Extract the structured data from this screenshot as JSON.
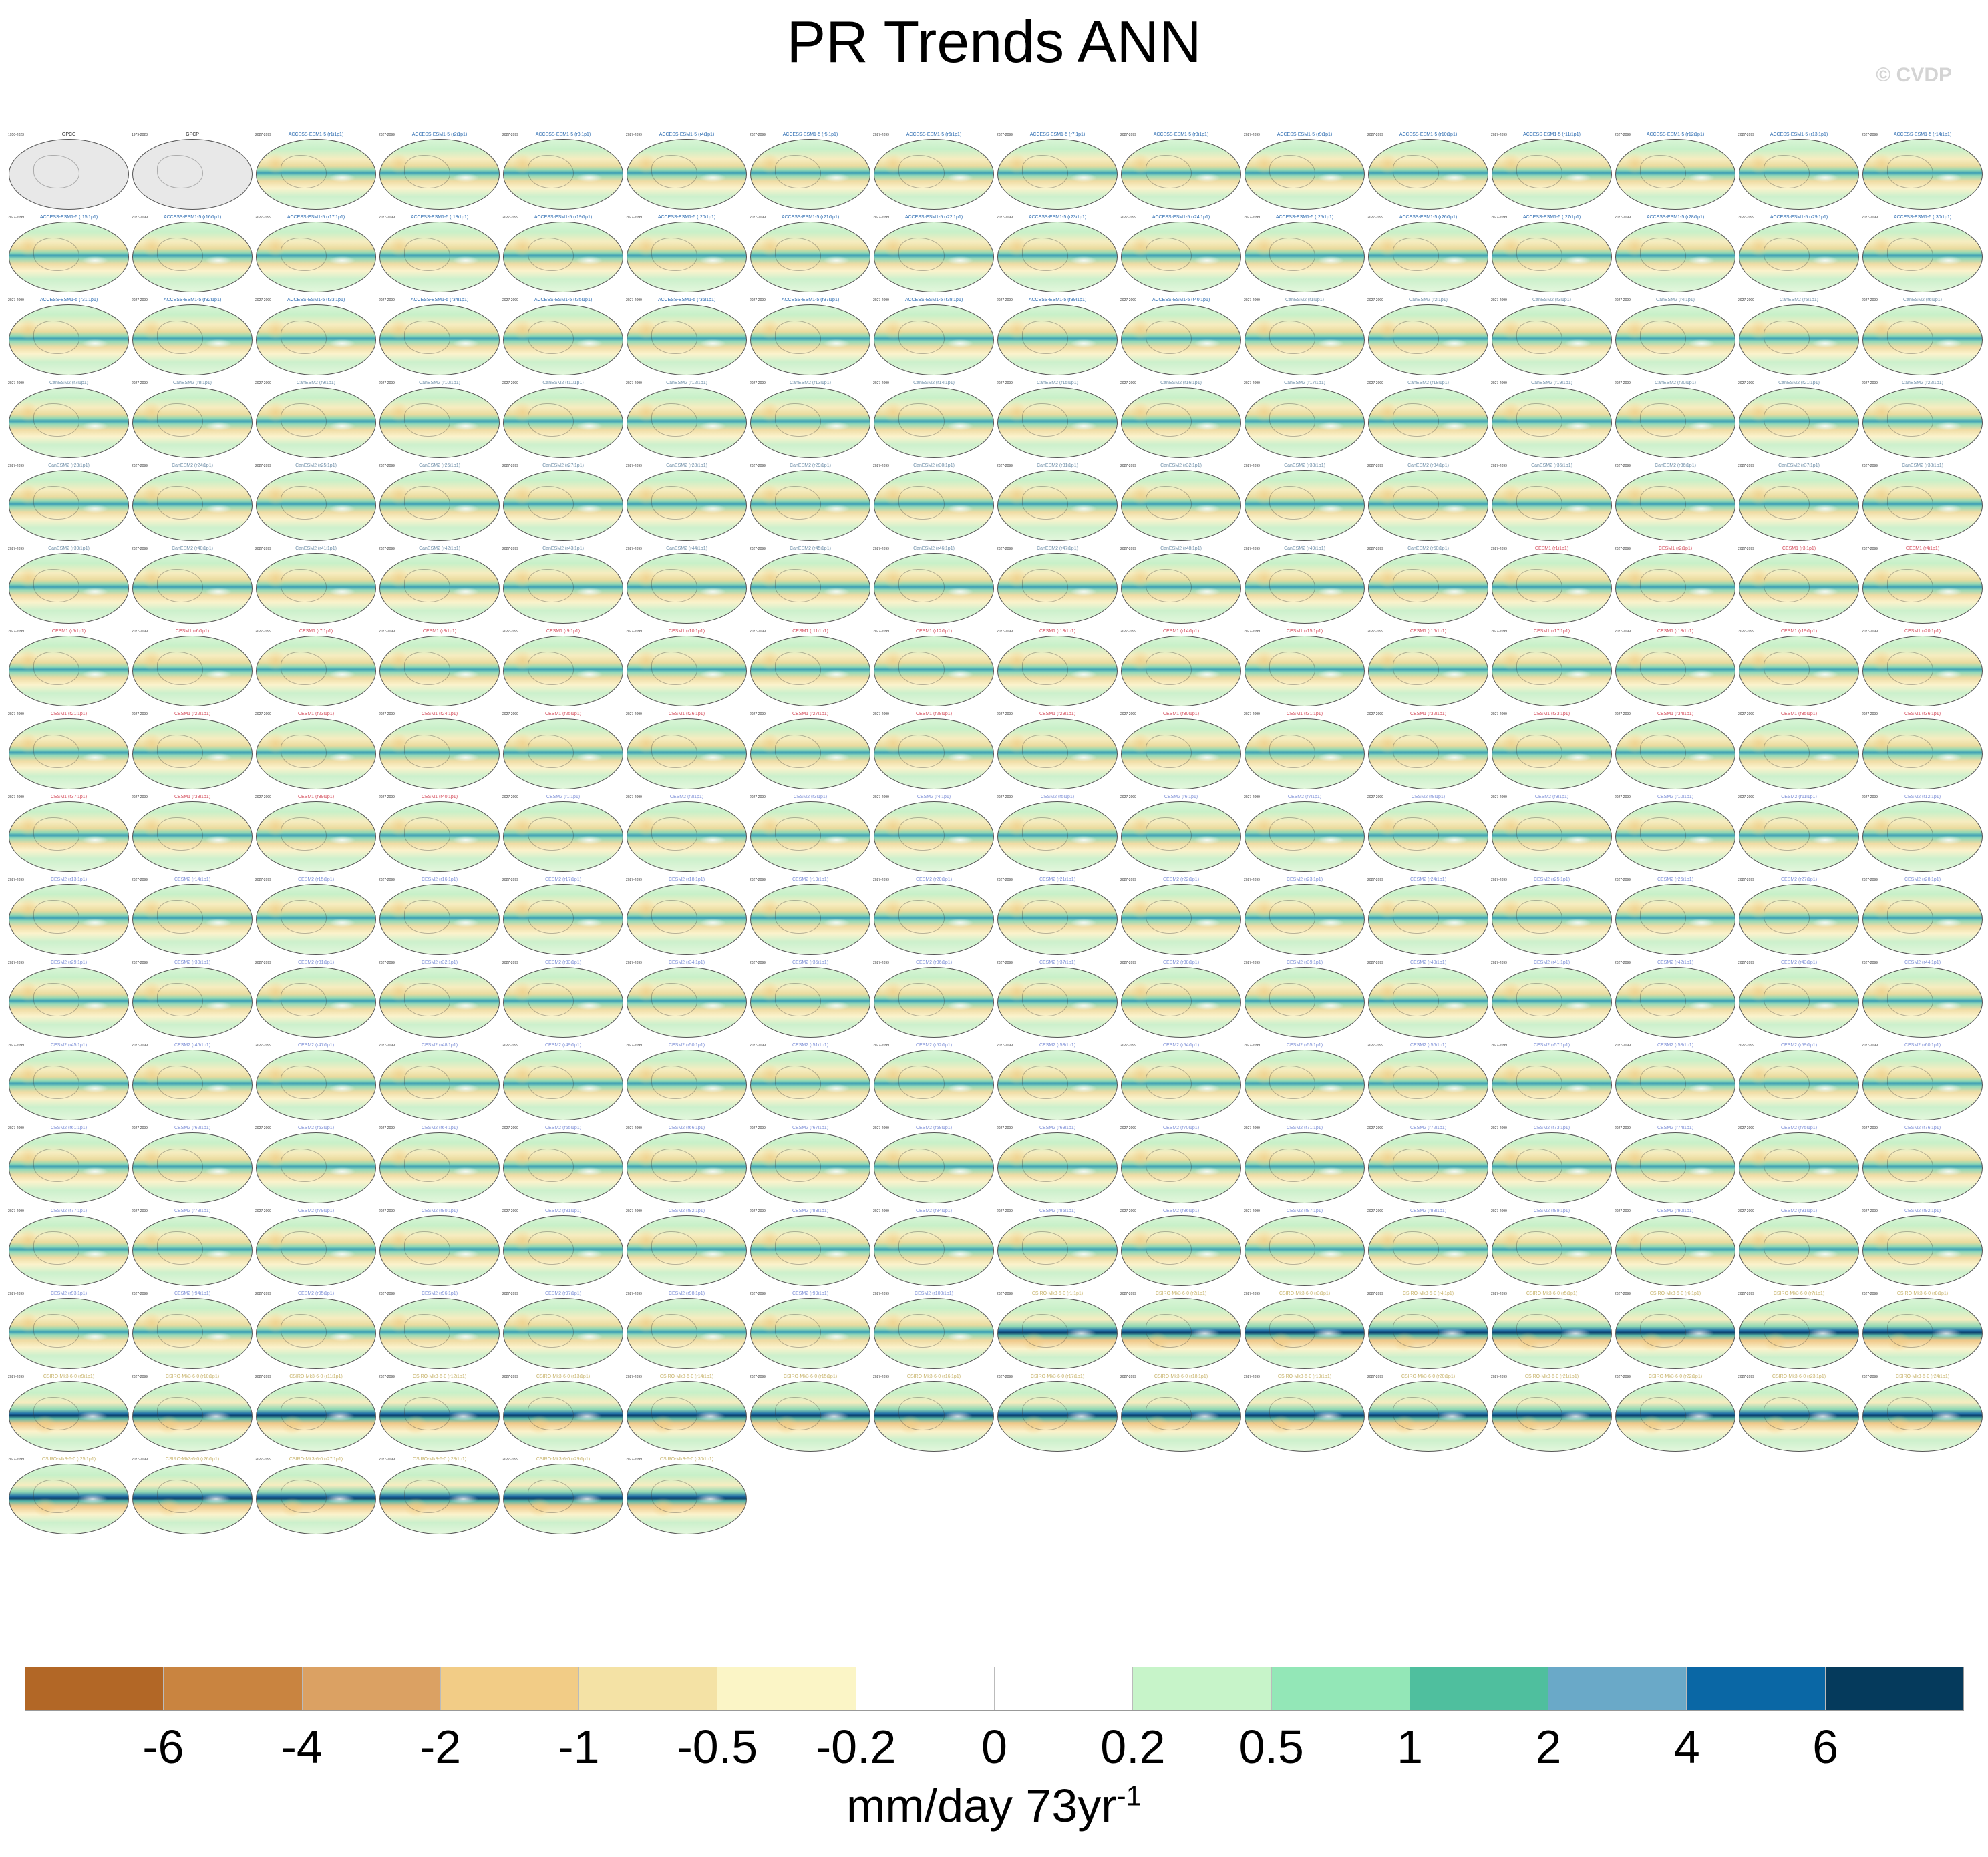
{
  "title": "PR Trends ANN",
  "watermark": "© CVDP",
  "panels": {
    "observations": [
      {
        "title": "GPCC",
        "years": "1950-2023"
      },
      {
        "title": "GPCP",
        "years": "1979-2023"
      }
    ],
    "model_groups": [
      {
        "model": "ACCESS-ESM1-5",
        "prefix": "ACCESS-ESM1-5",
        "title_color": "#2c6bb0",
        "count": 40,
        "years": "2027-2099"
      },
      {
        "model": "CanESM2",
        "prefix": "CanESM2",
        "title_color": "#6f8fa8",
        "count": 50,
        "years": "2027-2099"
      },
      {
        "model": "CESM1",
        "prefix": "CESM1",
        "title_color": "#d44d5c",
        "count": 40,
        "years": "2027-2099"
      },
      {
        "model": "CESM2",
        "prefix": "CESM2",
        "title_color": "#7d8fd6",
        "count": 100,
        "years": "2027-2099"
      },
      {
        "model": "CSIRO-Mk3-6-0",
        "prefix": "CSIRO-Mk3-6-0",
        "title_color": "#c7b36b",
        "count": 30,
        "years": "2027-2099"
      }
    ]
  },
  "colorbar": {
    "colors": [
      "#b26726",
      "#c98440",
      "#dba163",
      "#f2cc86",
      "#f4e2a5",
      "#fbf5c6",
      "#ffffff",
      "#ffffff",
      "#c7f4c9",
      "#93e7b7",
      "#4fbf9e",
      "#6aa9c8",
      "#0a67a5",
      "#053a5c"
    ],
    "ticks": [
      "-6",
      "-4",
      "-2",
      "-1",
      "-0.5",
      "-0.2",
      "0",
      "0.2",
      "0.5",
      "1",
      "2",
      "4",
      "6"
    ],
    "units": "mm/day 73yr",
    "units_superscript": "-1"
  }
}
